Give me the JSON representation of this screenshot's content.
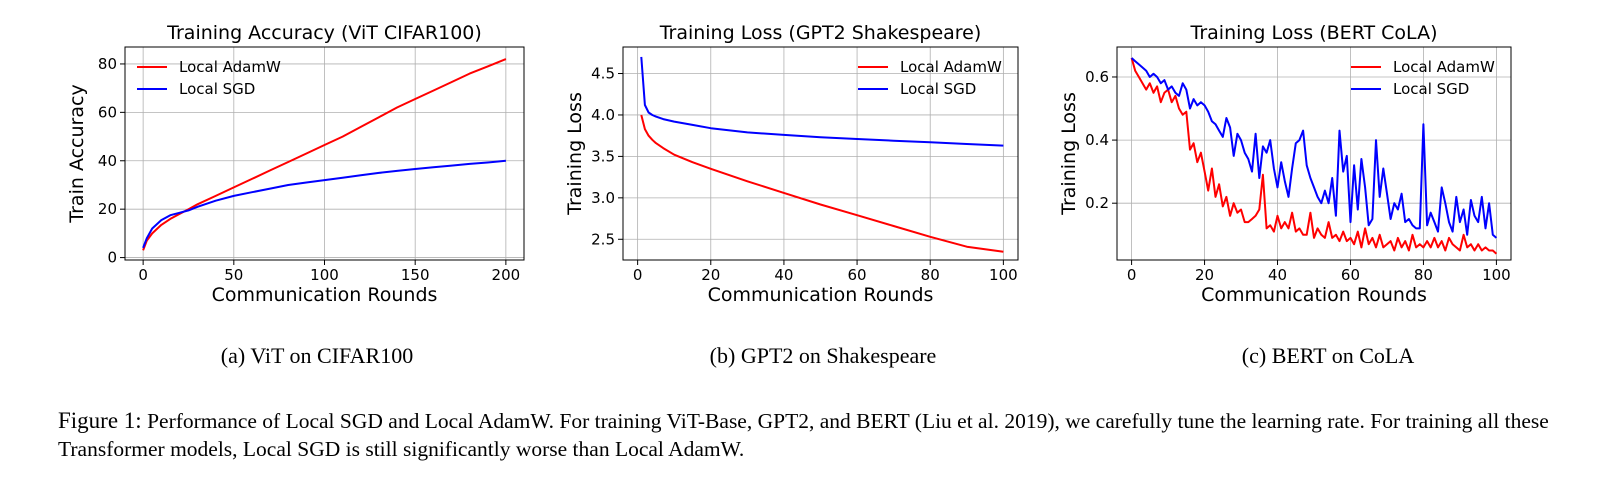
{
  "chart_data": [
    {
      "type": "line",
      "title": "Training Accuracy (ViT CIFAR100)",
      "xlabel": "Communication Rounds",
      "ylabel": "Train Accuracy",
      "xlim": [
        -10,
        210
      ],
      "ylim": [
        -1,
        87
      ],
      "xticks": [
        0,
        50,
        100,
        150,
        200
      ],
      "yticks": [
        0,
        20,
        40,
        60,
        80
      ],
      "grid": true,
      "legend_position": "top-left",
      "series": [
        {
          "name": "Local AdamW",
          "color": "#ff0000",
          "x": [
            0,
            2,
            5,
            10,
            15,
            20,
            25,
            30,
            40,
            50,
            60,
            70,
            80,
            90,
            100,
            110,
            120,
            130,
            140,
            150,
            160,
            170,
            180,
            190,
            200
          ],
          "y": [
            3,
            7,
            10,
            13.5,
            16,
            18,
            20,
            22,
            25.5,
            29,
            32.5,
            36,
            39.5,
            43,
            46.5,
            50,
            54,
            58,
            62,
            65.5,
            69,
            72.5,
            76,
            79,
            82
          ]
        },
        {
          "name": "Local SGD",
          "color": "#0000ff",
          "x": [
            0,
            2,
            5,
            10,
            15,
            20,
            25,
            30,
            40,
            50,
            60,
            70,
            80,
            90,
            100,
            110,
            120,
            130,
            140,
            150,
            160,
            170,
            180,
            190,
            200
          ],
          "y": [
            4,
            8,
            12,
            15.5,
            17.5,
            18.5,
            19.5,
            21,
            23.5,
            25.5,
            27,
            28.5,
            30,
            31,
            32,
            33,
            34,
            35,
            35.8,
            36.6,
            37.3,
            38,
            38.7,
            39.3,
            40
          ]
        }
      ]
    },
    {
      "type": "line",
      "title": "Training Loss (GPT2 Shakespeare)",
      "xlabel": "Communication Rounds",
      "ylabel": "Training Loss",
      "xlim": [
        -4,
        104
      ],
      "ylim": [
        2.25,
        4.82
      ],
      "xticks": [
        0,
        20,
        40,
        60,
        80,
        100
      ],
      "yticks": [
        2.5,
        3.0,
        3.5,
        4.0,
        4.5
      ],
      "ytick_labels": [
        "2.5",
        "3.0",
        "3.5",
        "4.0",
        "4.5"
      ],
      "grid": true,
      "legend_position": "top-right",
      "series": [
        {
          "name": "Local AdamW",
          "color": "#ff0000",
          "x": [
            1,
            2,
            3,
            4,
            5,
            7,
            10,
            15,
            20,
            30,
            40,
            50,
            60,
            70,
            80,
            90,
            100
          ],
          "y": [
            4.0,
            3.83,
            3.75,
            3.7,
            3.66,
            3.6,
            3.52,
            3.43,
            3.35,
            3.2,
            3.06,
            2.92,
            2.79,
            2.66,
            2.53,
            2.41,
            2.35
          ]
        },
        {
          "name": "Local SGD",
          "color": "#0000ff",
          "x": [
            1,
            2,
            3,
            4,
            5,
            7,
            10,
            15,
            20,
            30,
            40,
            50,
            60,
            70,
            80,
            90,
            100
          ],
          "y": [
            4.7,
            4.12,
            4.03,
            4.0,
            3.98,
            3.95,
            3.92,
            3.88,
            3.84,
            3.79,
            3.76,
            3.73,
            3.71,
            3.69,
            3.67,
            3.65,
            3.63
          ]
        }
      ]
    },
    {
      "type": "line",
      "title": "Training Loss (BERT CoLA)",
      "xlabel": "Communication Rounds",
      "ylabel": "Training Loss",
      "xlim": [
        -4,
        104
      ],
      "ylim": [
        0.02,
        0.695
      ],
      "xticks": [
        0,
        20,
        40,
        60,
        80,
        100
      ],
      "yticks": [
        0.2,
        0.4,
        0.6
      ],
      "ytick_labels": [
        "0.2",
        "0.4",
        "0.6"
      ],
      "grid": true,
      "legend_position": "top-right",
      "series": [
        {
          "name": "Local AdamW",
          "color": "#ff0000",
          "x": [
            0,
            1,
            2,
            3,
            4,
            5,
            6,
            7,
            8,
            9,
            10,
            11,
            12,
            13,
            14,
            15,
            16,
            17,
            18,
            19,
            20,
            21,
            22,
            23,
            24,
            25,
            26,
            27,
            28,
            29,
            30,
            31,
            32,
            33,
            34,
            35,
            36,
            37,
            38,
            39,
            40,
            41,
            42,
            43,
            44,
            45,
            46,
            47,
            48,
            49,
            50,
            51,
            52,
            53,
            54,
            55,
            56,
            57,
            58,
            59,
            60,
            61,
            62,
            63,
            64,
            65,
            66,
            67,
            68,
            69,
            70,
            71,
            72,
            73,
            74,
            75,
            76,
            77,
            78,
            79,
            80,
            81,
            82,
            83,
            84,
            85,
            86,
            87,
            88,
            89,
            90,
            91,
            92,
            93,
            94,
            95,
            96,
            97,
            98,
            99,
            100
          ],
          "y": [
            0.66,
            0.62,
            0.6,
            0.58,
            0.56,
            0.58,
            0.55,
            0.57,
            0.52,
            0.55,
            0.56,
            0.52,
            0.54,
            0.5,
            0.48,
            0.49,
            0.37,
            0.39,
            0.33,
            0.36,
            0.3,
            0.24,
            0.31,
            0.22,
            0.26,
            0.19,
            0.22,
            0.16,
            0.2,
            0.17,
            0.18,
            0.14,
            0.14,
            0.15,
            0.16,
            0.18,
            0.29,
            0.12,
            0.13,
            0.11,
            0.16,
            0.12,
            0.14,
            0.12,
            0.17,
            0.11,
            0.12,
            0.1,
            0.1,
            0.17,
            0.09,
            0.12,
            0.1,
            0.09,
            0.14,
            0.09,
            0.1,
            0.08,
            0.11,
            0.08,
            0.09,
            0.07,
            0.11,
            0.06,
            0.12,
            0.07,
            0.09,
            0.06,
            0.1,
            0.06,
            0.07,
            0.08,
            0.05,
            0.09,
            0.06,
            0.08,
            0.05,
            0.1,
            0.06,
            0.07,
            0.06,
            0.08,
            0.06,
            0.09,
            0.06,
            0.08,
            0.05,
            0.09,
            0.07,
            0.06,
            0.05,
            0.1,
            0.06,
            0.07,
            0.05,
            0.07,
            0.05,
            0.06,
            0.05,
            0.05,
            0.04
          ]
        },
        {
          "name": "Local SGD",
          "color": "#0000ff",
          "x": [
            0,
            1,
            2,
            3,
            4,
            5,
            6,
            7,
            8,
            9,
            10,
            11,
            12,
            13,
            14,
            15,
            16,
            17,
            18,
            19,
            20,
            21,
            22,
            23,
            24,
            25,
            26,
            27,
            28,
            29,
            30,
            31,
            32,
            33,
            34,
            35,
            36,
            37,
            38,
            39,
            40,
            41,
            42,
            43,
            44,
            45,
            46,
            47,
            48,
            49,
            50,
            51,
            52,
            53,
            54,
            55,
            56,
            57,
            58,
            59,
            60,
            61,
            62,
            63,
            64,
            65,
            66,
            67,
            68,
            69,
            70,
            71,
            72,
            73,
            74,
            75,
            76,
            77,
            78,
            79,
            80,
            81,
            82,
            83,
            84,
            85,
            86,
            87,
            88,
            89,
            90,
            91,
            92,
            93,
            94,
            95,
            96,
            97,
            98,
            99,
            100
          ],
          "y": [
            0.66,
            0.65,
            0.64,
            0.63,
            0.62,
            0.6,
            0.61,
            0.6,
            0.58,
            0.59,
            0.56,
            0.57,
            0.55,
            0.54,
            0.58,
            0.56,
            0.5,
            0.53,
            0.51,
            0.52,
            0.51,
            0.49,
            0.46,
            0.45,
            0.43,
            0.41,
            0.47,
            0.44,
            0.35,
            0.42,
            0.4,
            0.36,
            0.34,
            0.3,
            0.42,
            0.28,
            0.38,
            0.36,
            0.4,
            0.31,
            0.25,
            0.33,
            0.27,
            0.22,
            0.31,
            0.39,
            0.4,
            0.43,
            0.32,
            0.28,
            0.25,
            0.22,
            0.2,
            0.24,
            0.2,
            0.28,
            0.16,
            0.43,
            0.3,
            0.35,
            0.14,
            0.32,
            0.18,
            0.34,
            0.25,
            0.13,
            0.15,
            0.4,
            0.22,
            0.31,
            0.23,
            0.15,
            0.2,
            0.18,
            0.23,
            0.14,
            0.15,
            0.13,
            0.12,
            0.12,
            0.45,
            0.13,
            0.17,
            0.14,
            0.11,
            0.25,
            0.2,
            0.14,
            0.11,
            0.22,
            0.14,
            0.18,
            0.1,
            0.21,
            0.16,
            0.14,
            0.22,
            0.12,
            0.2,
            0.1,
            0.09
          ]
        }
      ]
    }
  ],
  "subcaptions": [
    "(a) ViT on CIFAR100",
    "(b) GPT2 on Shakespeare",
    "(c) BERT on CoLA"
  ],
  "caption": {
    "label": "Figure 1:",
    "text": "Performance of Local SGD and Local AdamW. For training ViT-Base, GPT2, and BERT (Liu et al. 2019), we carefully tune the learning rate. For training all these Transformer models, Local SGD is still significantly worse than Local AdamW."
  }
}
